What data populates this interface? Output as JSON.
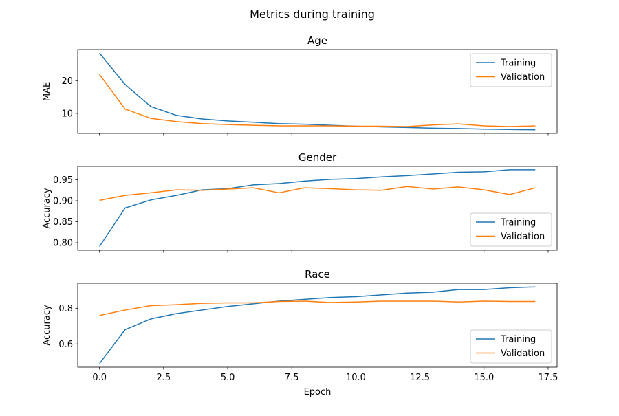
{
  "figure": {
    "suptitle": "Metrics during training"
  },
  "chart_data": [
    {
      "type": "line",
      "title": "Age",
      "xlabel": "",
      "ylabel": "MAE",
      "x": [
        0,
        1,
        2,
        3,
        4,
        5,
        6,
        7,
        8,
        9,
        10,
        11,
        12,
        13,
        14,
        15,
        16,
        17
      ],
      "xlim": [
        -0.85,
        17.85
      ],
      "ylim": [
        3.9,
        29.5
      ],
      "xticks": [
        0.0,
        2.5,
        5.0,
        7.5,
        10.0,
        12.5,
        15.0,
        17.5
      ],
      "xtick_labels_visible": false,
      "yticks": [
        10,
        20
      ],
      "ytick_labels": [
        "10",
        "20"
      ],
      "legend": "upper right",
      "grid": false,
      "series": [
        {
          "name": "Training",
          "color": "#1f77b4",
          "values": [
            28.4,
            18.8,
            12.1,
            9.4,
            8.3,
            7.7,
            7.3,
            6.9,
            6.7,
            6.4,
            6.1,
            5.9,
            5.7,
            5.5,
            5.4,
            5.2,
            5.1,
            5.0
          ]
        },
        {
          "name": "Validation",
          "color": "#ff7f0e",
          "values": [
            21.9,
            11.3,
            8.5,
            7.5,
            6.9,
            6.6,
            6.4,
            6.2,
            6.2,
            6.2,
            6.1,
            6.1,
            6.0,
            6.5,
            6.8,
            6.2,
            6.0,
            6.2
          ]
        }
      ]
    },
    {
      "type": "line",
      "title": "Gender",
      "xlabel": "",
      "ylabel": "Accuracy",
      "x": [
        0,
        1,
        2,
        3,
        4,
        5,
        6,
        7,
        8,
        9,
        10,
        11,
        12,
        13,
        14,
        15,
        16,
        17
      ],
      "xlim": [
        -0.85,
        17.85
      ],
      "ylim": [
        0.782,
        0.982
      ],
      "xticks": [
        0.0,
        2.5,
        5.0,
        7.5,
        10.0,
        12.5,
        15.0,
        17.5
      ],
      "xtick_labels_visible": false,
      "yticks": [
        0.8,
        0.85,
        0.9,
        0.95
      ],
      "ytick_labels": [
        "0.80",
        "0.85",
        "0.90",
        "0.95"
      ],
      "legend": "lower right",
      "grid": false,
      "series": [
        {
          "name": "Training",
          "color": "#1f77b4",
          "values": [
            0.791,
            0.883,
            0.902,
            0.913,
            0.926,
            0.929,
            0.938,
            0.941,
            0.947,
            0.951,
            0.953,
            0.957,
            0.96,
            0.964,
            0.968,
            0.969,
            0.974,
            0.974
          ]
        },
        {
          "name": "Validation",
          "color": "#ff7f0e",
          "values": [
            0.901,
            0.913,
            0.919,
            0.926,
            0.925,
            0.928,
            0.931,
            0.919,
            0.931,
            0.929,
            0.926,
            0.925,
            0.934,
            0.928,
            0.933,
            0.926,
            0.915,
            0.931
          ]
        }
      ]
    },
    {
      "type": "line",
      "title": "Race",
      "xlabel": "Epoch",
      "ylabel": "Accuracy",
      "x": [
        0,
        1,
        2,
        3,
        4,
        5,
        6,
        7,
        8,
        9,
        10,
        11,
        12,
        13,
        14,
        15,
        16,
        17
      ],
      "xlim": [
        -0.85,
        17.85
      ],
      "ylim": [
        0.47,
        0.94
      ],
      "xticks": [
        0.0,
        2.5,
        5.0,
        7.5,
        10.0,
        12.5,
        15.0,
        17.5
      ],
      "xtick_labels_visible": true,
      "xtick_labels": [
        "0.0",
        "2.5",
        "5.0",
        "7.5",
        "10.0",
        "12.5",
        "15.0",
        "17.5"
      ],
      "yticks": [
        0.6,
        0.8
      ],
      "ytick_labels": [
        "0.6",
        "0.8"
      ],
      "legend": "lower right",
      "grid": false,
      "series": [
        {
          "name": "Training",
          "color": "#1f77b4",
          "values": [
            0.49,
            0.68,
            0.74,
            0.77,
            0.79,
            0.81,
            0.825,
            0.84,
            0.85,
            0.86,
            0.865,
            0.875,
            0.885,
            0.89,
            0.905,
            0.905,
            0.915,
            0.92
          ]
        },
        {
          "name": "Validation",
          "color": "#ff7f0e",
          "values": [
            0.76,
            0.79,
            0.815,
            0.82,
            0.828,
            0.83,
            0.83,
            0.838,
            0.84,
            0.832,
            0.835,
            0.84,
            0.84,
            0.84,
            0.835,
            0.84,
            0.838,
            0.838
          ]
        }
      ]
    }
  ]
}
